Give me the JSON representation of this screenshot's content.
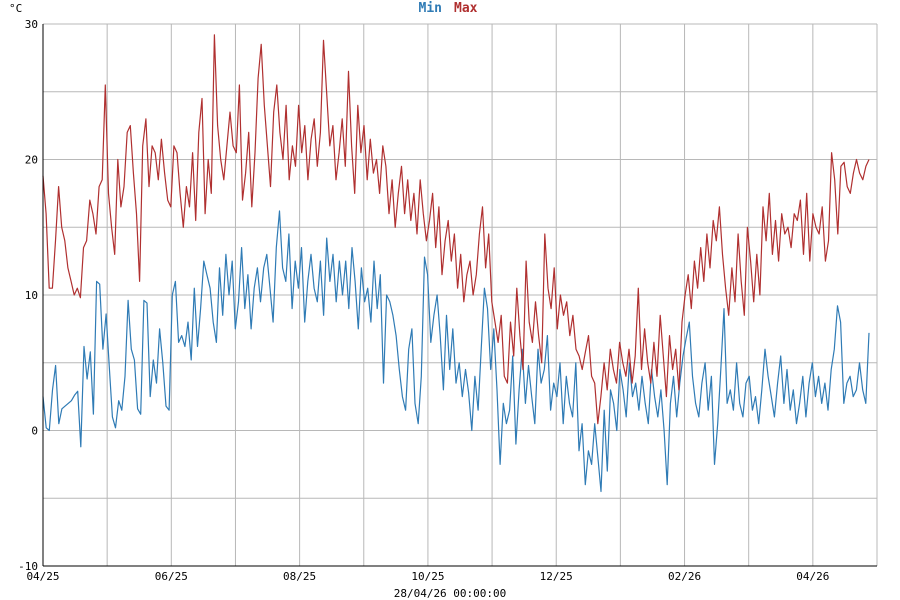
{
  "chart_data": {
    "type": "line",
    "unit_label": "°C",
    "footer_label": "28/04/26 00:00:00",
    "ylim": [
      -10,
      30
    ],
    "y_ticks": [
      -10,
      0,
      10,
      20,
      30
    ],
    "x_tick_labels": [
      "04/25",
      "06/25",
      "08/25",
      "10/25",
      "12/25",
      "02/26",
      "04/26"
    ],
    "legend": [
      "Min",
      "Max"
    ],
    "colors": {
      "min": "#2f7bb5",
      "max": "#b03030",
      "grid": "#b8b8b8",
      "axis": "#000000"
    },
    "series": [
      {
        "name": "Min",
        "color": "#2f7bb5",
        "values": [
          2.5,
          0.2,
          0.0,
          3.0,
          4.8,
          0.5,
          1.6,
          1.8,
          2.0,
          2.2,
          2.6,
          2.9,
          -1.2,
          6.2,
          3.8,
          5.8,
          1.2,
          11.0,
          10.8,
          6.0,
          8.6,
          4.8,
          1.0,
          0.2,
          2.2,
          1.5,
          4.0,
          9.6,
          6.0,
          5.2,
          1.6,
          1.2,
          9.6,
          9.4,
          2.5,
          5.2,
          3.5,
          7.5,
          5.0,
          1.8,
          1.5,
          10.0,
          11.0,
          6.5,
          7.0,
          6.2,
          8.0,
          5.2,
          10.5,
          6.2,
          9.0,
          12.5,
          11.5,
          10.5,
          8.0,
          6.5,
          12.0,
          8.5,
          13.0,
          10.0,
          12.5,
          7.5,
          9.5,
          13.5,
          9.0,
          11.5,
          7.5,
          10.5,
          12.0,
          9.5,
          12.0,
          13.0,
          10.5,
          8.0,
          13.5,
          16.2,
          12.0,
          11.0,
          14.5,
          9.0,
          12.5,
          10.5,
          13.5,
          8.0,
          11.0,
          13.0,
          10.5,
          9.5,
          12.5,
          8.5,
          14.2,
          11.0,
          13.0,
          9.5,
          12.5,
          10.0,
          12.5,
          9.0,
          13.5,
          11.0,
          7.5,
          12.0,
          9.5,
          10.5,
          8.0,
          12.5,
          9.0,
          11.5,
          3.5,
          10.0,
          9.5,
          8.5,
          7.0,
          4.5,
          2.5,
          1.5,
          6.0,
          7.5,
          2.0,
          0.5,
          4.0,
          12.8,
          11.5,
          6.5,
          8.5,
          10.0,
          7.0,
          3.0,
          8.5,
          4.5,
          7.5,
          3.5,
          5.0,
          2.5,
          4.5,
          2.8,
          0.0,
          4.0,
          1.5,
          6.0,
          10.5,
          9.0,
          4.5,
          7.5,
          3.0,
          -2.5,
          2.0,
          0.5,
          1.5,
          5.5,
          -1.0,
          3.0,
          6.0,
          2.0,
          4.8,
          2.5,
          0.5,
          6.0,
          3.5,
          4.5,
          7.0,
          1.5,
          3.5,
          2.5,
          5.0,
          0.5,
          4.0,
          2.0,
          1.0,
          5.0,
          -1.5,
          0.5,
          -4.0,
          -1.5,
          -2.5,
          0.5,
          -2.0,
          -4.5,
          1.5,
          -3.0,
          3.0,
          2.0,
          0.0,
          4.5,
          3.0,
          1.0,
          5.0,
          2.5,
          3.5,
          1.5,
          4.0,
          2.0,
          0.5,
          4.5,
          2.5,
          1.0,
          3.0,
          0.0,
          -4.0,
          2.0,
          4.0,
          1.0,
          3.5,
          5.5,
          6.8,
          8.0,
          4.0,
          2.0,
          1.0,
          3.5,
          5.0,
          1.5,
          4.0,
          -2.5,
          0.5,
          4.5,
          9.0,
          2.0,
          3.0,
          1.5,
          5.0,
          2.0,
          1.0,
          3.5,
          4.0,
          1.5,
          2.5,
          0.5,
          3.0,
          6.0,
          4.0,
          2.5,
          1.0,
          3.5,
          5.5,
          2.0,
          4.5,
          1.5,
          3.0,
          0.5,
          2.0,
          4.0,
          1.0,
          3.5,
          5.0,
          2.5,
          4.0,
          2.0,
          3.5,
          1.5,
          4.5,
          6.0,
          9.2,
          8.0,
          2.0,
          3.5,
          4.0,
          2.5,
          3.0,
          5.0,
          3.0,
          2.0,
          7.2
        ]
      },
      {
        "name": "Max",
        "color": "#b03030",
        "values": [
          18.8,
          16.0,
          10.5,
          10.5,
          14.0,
          18.0,
          15.0,
          14.0,
          12.0,
          11.0,
          10.0,
          10.5,
          9.8,
          13.5,
          14.0,
          17.0,
          16.0,
          14.5,
          18.0,
          18.5,
          25.5,
          17.5,
          15.0,
          13.0,
          20.0,
          16.5,
          18.0,
          22.0,
          22.5,
          19.0,
          16.0,
          11.0,
          21.0,
          23.0,
          18.0,
          21.0,
          20.5,
          18.5,
          21.5,
          19.0,
          17.0,
          16.5,
          21.0,
          20.5,
          17.5,
          15.0,
          18.0,
          16.5,
          20.5,
          15.5,
          22.0,
          24.5,
          16.0,
          20.0,
          17.5,
          29.2,
          22.5,
          20.0,
          18.5,
          21.0,
          23.5,
          21.0,
          20.5,
          25.5,
          17.0,
          19.0,
          22.0,
          16.5,
          20.5,
          26.0,
          28.5,
          24.0,
          21.0,
          18.0,
          23.5,
          25.5,
          22.0,
          20.0,
          24.0,
          18.5,
          21.0,
          19.5,
          24.0,
          20.5,
          22.5,
          18.5,
          21.5,
          23.0,
          19.5,
          22.0,
          28.8,
          25.0,
          21.0,
          22.5,
          18.5,
          20.5,
          23.0,
          19.5,
          26.5,
          21.0,
          17.5,
          24.0,
          20.5,
          22.5,
          18.5,
          21.5,
          19.0,
          20.0,
          17.5,
          21.0,
          19.5,
          16.0,
          18.5,
          15.0,
          17.5,
          19.5,
          16.0,
          18.5,
          15.5,
          17.5,
          14.5,
          18.5,
          16.0,
          14.0,
          15.5,
          17.5,
          13.5,
          16.5,
          11.5,
          14.0,
          15.5,
          12.5,
          14.5,
          10.5,
          13.0,
          9.5,
          11.5,
          12.5,
          10.0,
          11.5,
          14.5,
          16.5,
          12.0,
          14.5,
          9.5,
          8.0,
          6.5,
          8.5,
          4.0,
          3.5,
          8.0,
          5.5,
          10.5,
          7.0,
          4.5,
          12.5,
          8.0,
          6.5,
          9.5,
          7.0,
          5.0,
          14.5,
          10.5,
          9.0,
          12.0,
          7.5,
          10.0,
          8.5,
          9.5,
          7.0,
          8.5,
          6.0,
          5.5,
          4.5,
          5.8,
          7.0,
          4.0,
          3.5,
          0.5,
          2.5,
          5.0,
          3.0,
          6.0,
          4.5,
          3.5,
          6.5,
          5.0,
          4.0,
          6.0,
          3.5,
          5.5,
          10.5,
          4.5,
          7.5,
          5.0,
          3.5,
          6.5,
          4.0,
          8.5,
          5.5,
          2.5,
          7.0,
          4.5,
          6.0,
          3.0,
          8.0,
          10.0,
          11.5,
          9.0,
          12.5,
          10.5,
          13.5,
          11.0,
          14.5,
          12.0,
          15.5,
          14.0,
          16.5,
          13.0,
          10.5,
          8.5,
          12.0,
          9.5,
          14.5,
          11.0,
          8.5,
          15.0,
          12.5,
          9.5,
          13.0,
          10.0,
          16.5,
          14.0,
          17.5,
          13.0,
          15.5,
          12.5,
          16.0,
          14.5,
          15.0,
          13.5,
          16.0,
          15.5,
          17.0,
          13.0,
          17.5,
          12.5,
          16.0,
          15.0,
          14.5,
          16.5,
          12.5,
          14.0,
          20.5,
          18.5,
          14.5,
          19.5,
          19.8,
          18.0,
          17.5,
          19.0,
          20.0,
          19.0,
          18.5,
          19.5,
          20.0
        ]
      }
    ]
  }
}
